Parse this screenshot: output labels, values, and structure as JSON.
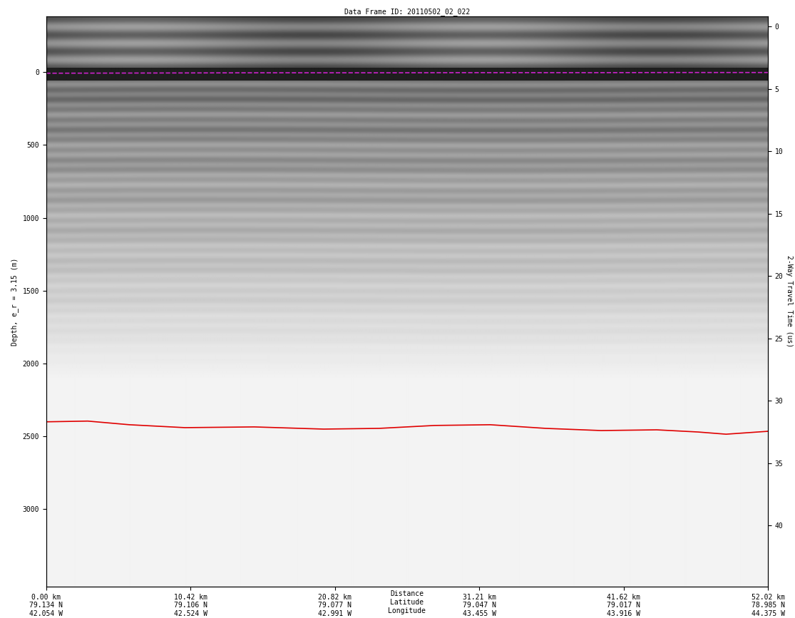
{
  "chart_data": {
    "type": "radar_echogram",
    "title": "Data Frame ID: 20110502_02_022",
    "y_label": "Depth, e_r = 3.15 (m)",
    "y2_label": "2-Way Travel Time (us)",
    "x_axis_caption": "Distance\nLatitude\nLongitude",
    "xlim": [
      0,
      52.02
    ],
    "xticks": [
      {
        "value": 0,
        "label": "0.00 km\n79.134 N\n42.054 W"
      },
      {
        "value": 10.42,
        "label": "10.42 km\n79.106 N\n42.524 W"
      },
      {
        "value": 20.82,
        "label": "20.82 km\n79.077 N\n42.991 W"
      },
      {
        "value": 31.21,
        "label": "31.21 km\n79.047 N\n43.455 W"
      },
      {
        "value": 41.62,
        "label": "41.62 km\n79.017 N\n43.916 W"
      },
      {
        "value": 52.02,
        "label": "52.02 km\n78.985 N\n44.375 W"
      }
    ],
    "ylim": [
      3530,
      -380
    ],
    "yticks": [
      0,
      500,
      1000,
      1500,
      2000,
      2500,
      3000
    ],
    "y2lim": [
      44.9,
      -0.8
    ],
    "y2ticks": [
      0,
      5,
      10,
      15,
      20,
      25,
      30,
      35,
      40
    ],
    "series": [
      {
        "color": "#cc22cc",
        "line_style": "dashed",
        "x": [
          0,
          5,
          10,
          15,
          20,
          25,
          30,
          35,
          40,
          45,
          52.02
        ],
        "values": [
          8,
          7,
          6,
          5,
          5,
          5,
          4,
          4,
          4,
          3,
          3
        ]
      },
      {
        "color": "#e00000",
        "line_style": "solid",
        "x": [
          0,
          3,
          6,
          10,
          15,
          20,
          24,
          28,
          32,
          36,
          40,
          44,
          47,
          49,
          52.02
        ],
        "values": [
          2400,
          2395,
          2420,
          2440,
          2435,
          2450,
          2445,
          2425,
          2420,
          2445,
          2460,
          2455,
          2470,
          2485,
          2465
        ]
      }
    ]
  }
}
